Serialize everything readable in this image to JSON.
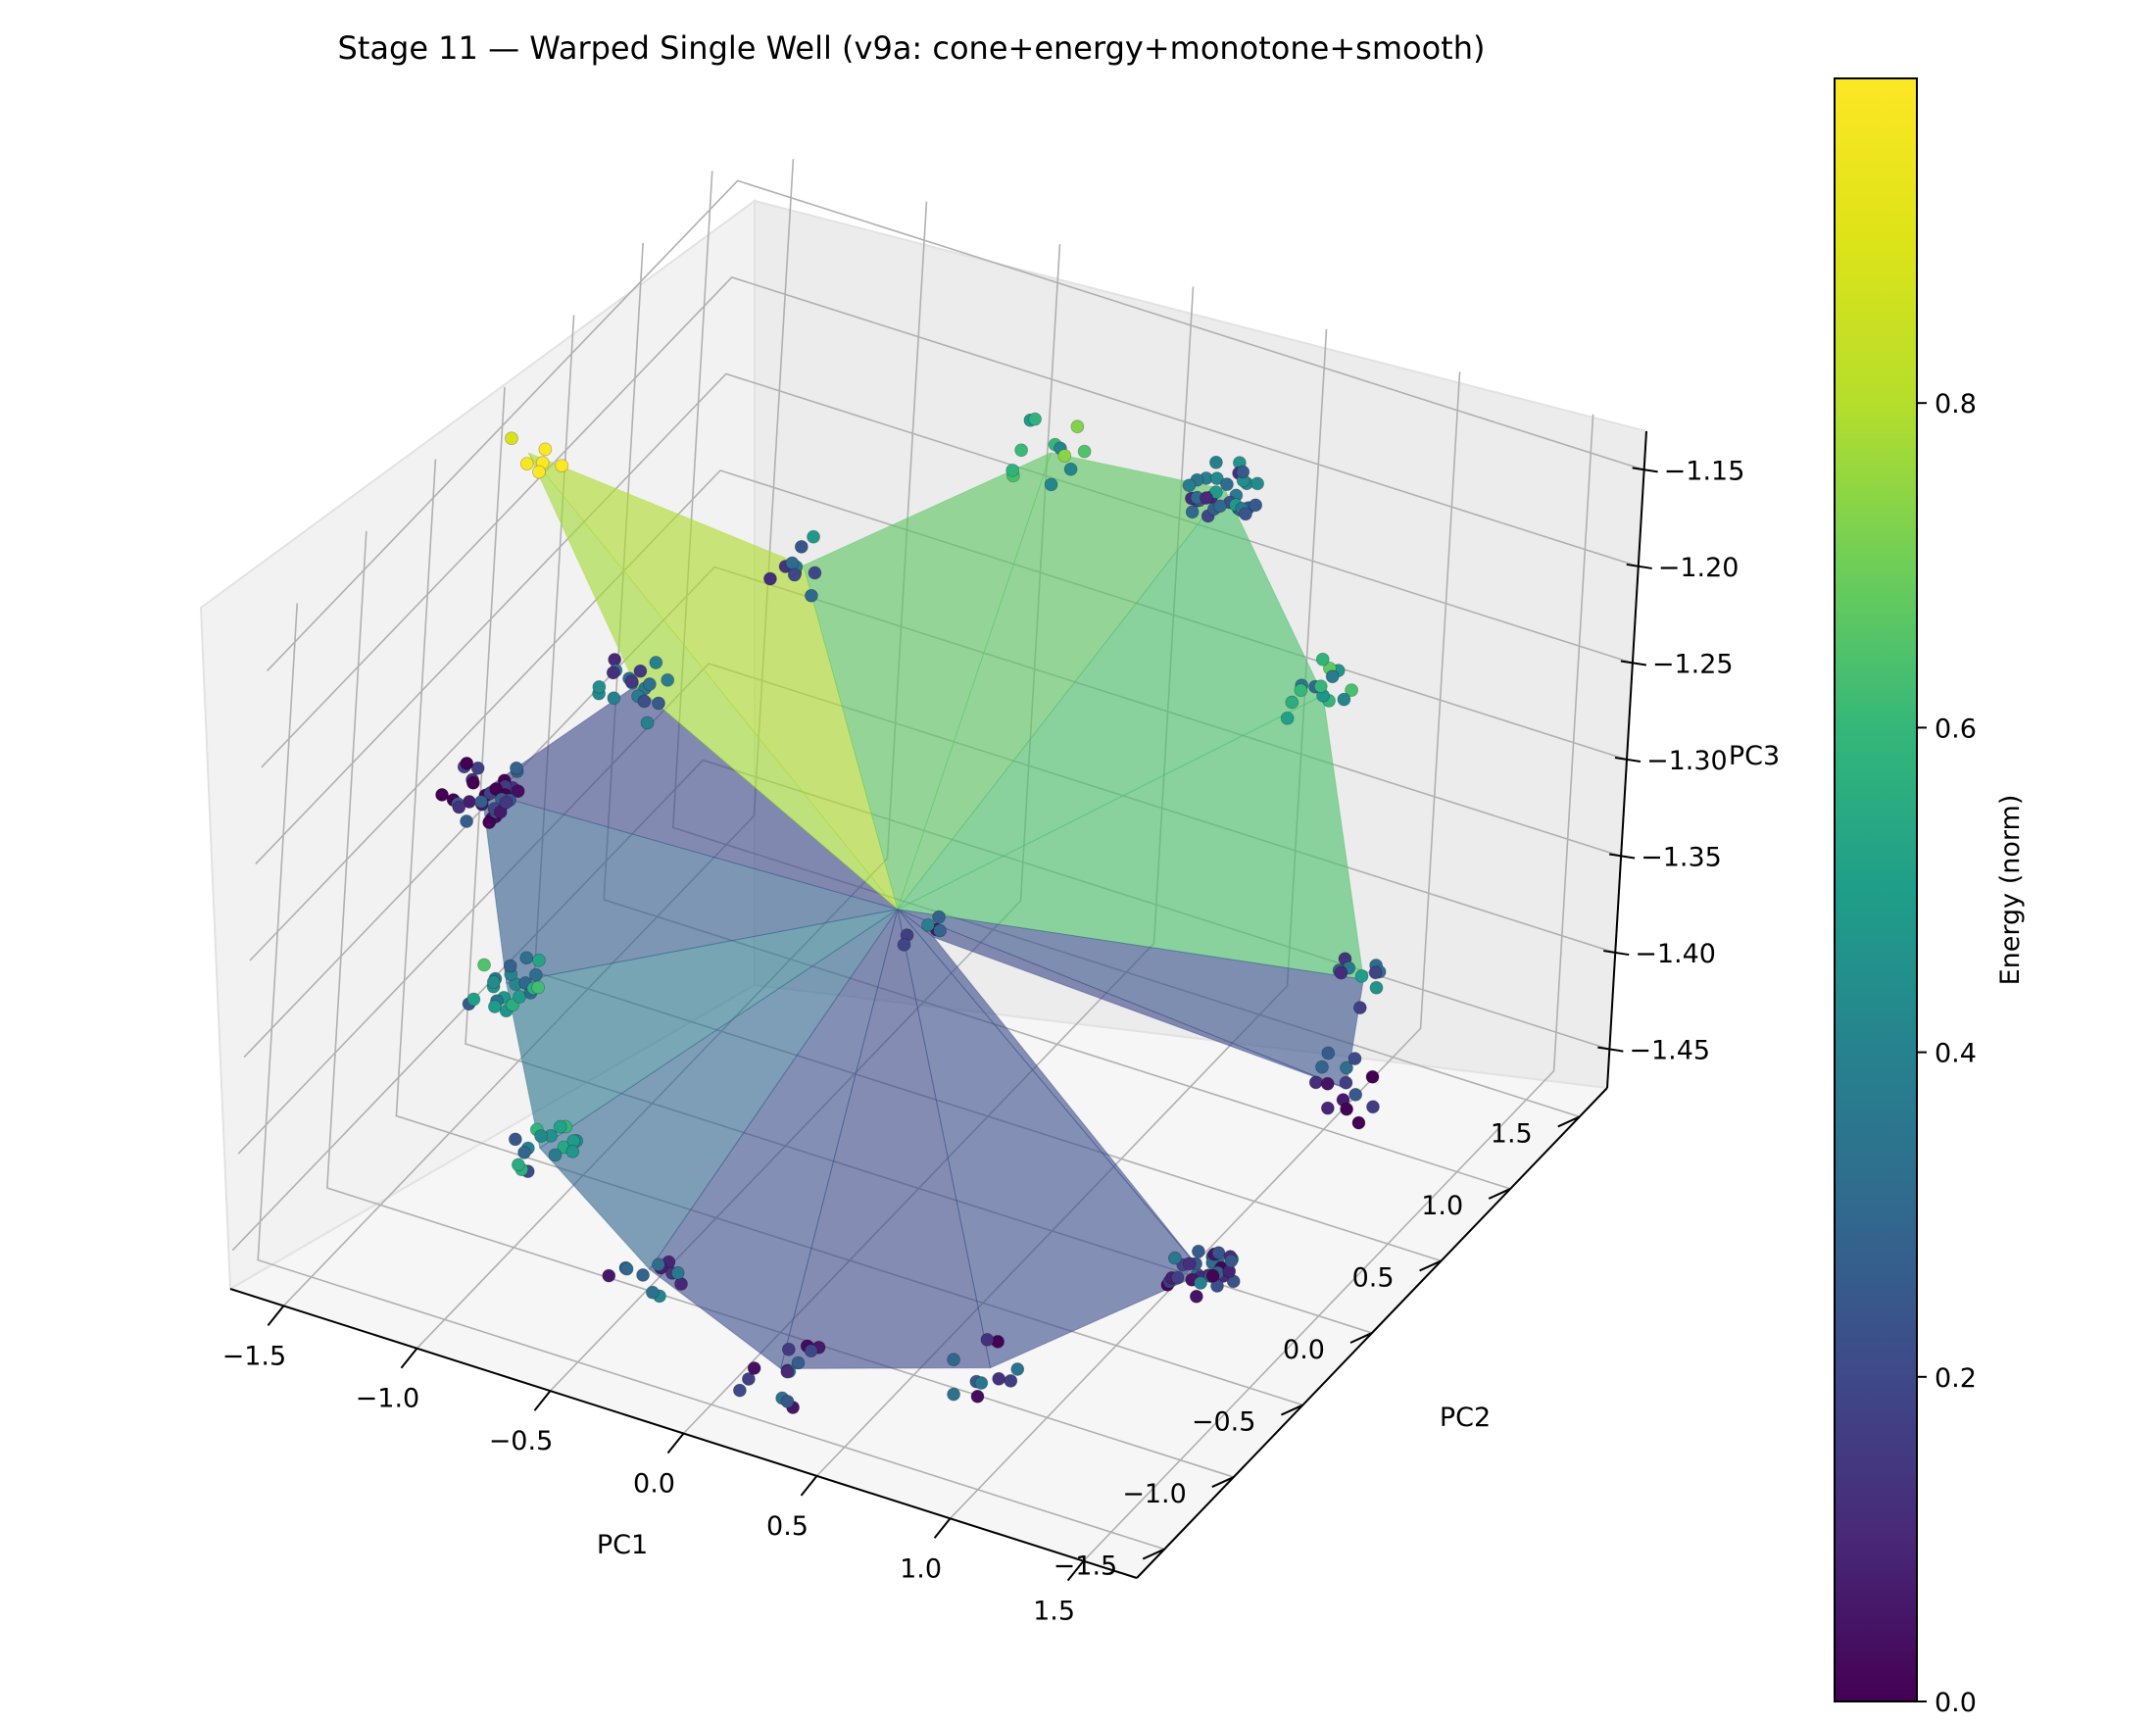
{
  "chart_data": {
    "type": "scatter3d",
    "title": "Stage 11 — Warped Single Well (v9a: cone+energy+monotone+smooth)",
    "xlabel": "PC1",
    "ylabel": "PC2",
    "zlabel": "PC3",
    "x_ticks": [
      "−1.5",
      "−1.0",
      "−0.5",
      "0.0",
      "0.5",
      "1.0",
      "1.5"
    ],
    "y_ticks": [
      "−1.5",
      "−1.0",
      "−0.5",
      "0.0",
      "0.5",
      "1.0",
      "1.5"
    ],
    "z_ticks": [
      "−1.45",
      "−1.40",
      "−1.35",
      "−1.30",
      "−1.25",
      "−1.20",
      "−1.15"
    ],
    "xlim": [
      -1.7,
      1.7
    ],
    "ylim": [
      -1.7,
      1.7
    ],
    "zlim": [
      -1.47,
      -1.13
    ],
    "colorbar": {
      "label": "Energy (norm)",
      "ticks": [
        "0.0",
        "0.2",
        "0.4",
        "0.6",
        "0.8"
      ],
      "range": [
        0.0,
        1.0
      ],
      "colormap": "viridis"
    },
    "surface": "translucent convex hull colored by energy",
    "clusters": [
      {
        "x": -1.55,
        "y": -0.1,
        "z": -1.15,
        "energy": 1.0,
        "n": 6
      },
      {
        "x": -1.6,
        "y": -0.2,
        "z": -1.32,
        "energy": 0.1,
        "n": 34
      },
      {
        "x": -1.3,
        "y": -0.55,
        "z": -1.38,
        "energy": 0.45,
        "n": 22
      },
      {
        "x": -0.95,
        "y": -0.95,
        "z": -1.42,
        "energy": 0.4,
        "n": 16
      },
      {
        "x": -0.4,
        "y": -1.2,
        "z": -1.44,
        "energy": 0.25,
        "n": 12
      },
      {
        "x": 0.2,
        "y": -1.4,
        "z": -1.45,
        "energy": 0.15,
        "n": 14
      },
      {
        "x": 0.9,
        "y": -1.25,
        "z": -1.43,
        "energy": 0.2,
        "n": 10
      },
      {
        "x": 1.4,
        "y": -0.7,
        "z": -1.4,
        "energy": 0.2,
        "n": 34
      },
      {
        "x": 1.55,
        "y": 0.0,
        "z": -1.35,
        "energy": 0.15,
        "n": 14
      },
      {
        "x": 1.4,
        "y": 0.4,
        "z": -1.33,
        "energy": 0.3,
        "n": 10
      },
      {
        "x": 0.95,
        "y": 0.9,
        "z": -1.24,
        "energy": 0.5,
        "n": 14
      },
      {
        "x": 0.4,
        "y": 1.2,
        "z": -1.18,
        "energy": 0.3,
        "n": 32
      },
      {
        "x": -0.2,
        "y": 1.1,
        "z": -1.18,
        "energy": 0.6,
        "n": 12
      },
      {
        "x": -0.8,
        "y": 0.5,
        "z": -1.22,
        "energy": 0.3,
        "n": 10
      },
      {
        "x": -1.2,
        "y": 0.1,
        "z": -1.27,
        "energy": 0.25,
        "n": 18
      },
      {
        "x": 0.0,
        "y": 0.0,
        "z": -1.34,
        "energy": 0.2,
        "n": 6
      }
    ]
  }
}
